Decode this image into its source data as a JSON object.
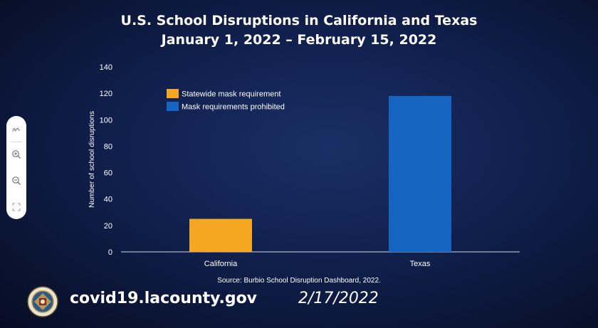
{
  "chart_data": {
    "type": "bar",
    "title": "U.S. School Disruptions in California and Texas",
    "subtitle": "January 1, 2022 – February 15, 2022",
    "categories": [
      "California",
      "Texas"
    ],
    "values": [
      25,
      118
    ],
    "bar_colors": [
      "#f5a623",
      "#1565c0"
    ],
    "legend": [
      {
        "label": "Statewide mask requirement",
        "color": "#f5a623"
      },
      {
        "label": "Mask requirements prohibited",
        "color": "#1565c0"
      }
    ],
    "legend_position": "top-left",
    "xlabel": "",
    "ylabel": "Number of school disruptions",
    "ylim": [
      0,
      140
    ],
    "yticks": [
      "0",
      "20",
      "40",
      "60",
      "80",
      "100",
      "120",
      "140"
    ],
    "grid": false
  },
  "source": "Source: Burbio School Disruption Dashboard, 2022.",
  "footer": {
    "url": "covid19.lacounty.gov",
    "date": "2/17/2022",
    "seal_text": "COUNTY OF LOS ANGELES"
  },
  "toolbar": {
    "tools": [
      {
        "name": "annotate-icon"
      },
      {
        "name": "zoom-in-icon"
      },
      {
        "name": "zoom-out-icon"
      },
      {
        "name": "fit-screen-icon"
      }
    ]
  },
  "colors": {
    "background": "#0b1a45",
    "axis": "#cfd6e6"
  }
}
